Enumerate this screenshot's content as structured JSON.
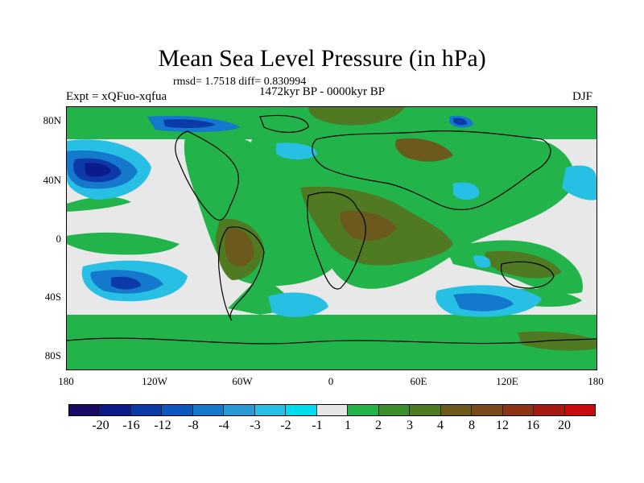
{
  "title": "Mean Sea Level Pressure (in hPa)",
  "stats": "rmsd= 1.7518 diff= 0.830994",
  "period": "1472kyr BP - 0000kyr BP",
  "experiment": "Expt = xQFuo-xqfua",
  "season": "DJF",
  "lat_labels": [
    "80N",
    "40N",
    "0",
    "40S",
    "80S"
  ],
  "lon_labels": [
    "180",
    "120W",
    "60W",
    "0",
    "60E",
    "120E",
    "180"
  ],
  "colorbar": {
    "colors": [
      "#1a0a66",
      "#0c1a8c",
      "#0b3aa8",
      "#0d57be",
      "#1478cc",
      "#2a9ad6",
      "#27c0e4",
      "#00dcef",
      "#e6e6e6",
      "#22b34a",
      "#3b8f2a",
      "#4f7a22",
      "#6b5a1c",
      "#7a4a1a",
      "#8c3516",
      "#a51a12",
      "#c80c0c"
    ],
    "labels": [
      "-20",
      "-16",
      "-12",
      "-8",
      "-4",
      "-3",
      "-2",
      "-1",
      "1",
      "2",
      "3",
      "4",
      "8",
      "12",
      "16",
      "20"
    ]
  }
}
